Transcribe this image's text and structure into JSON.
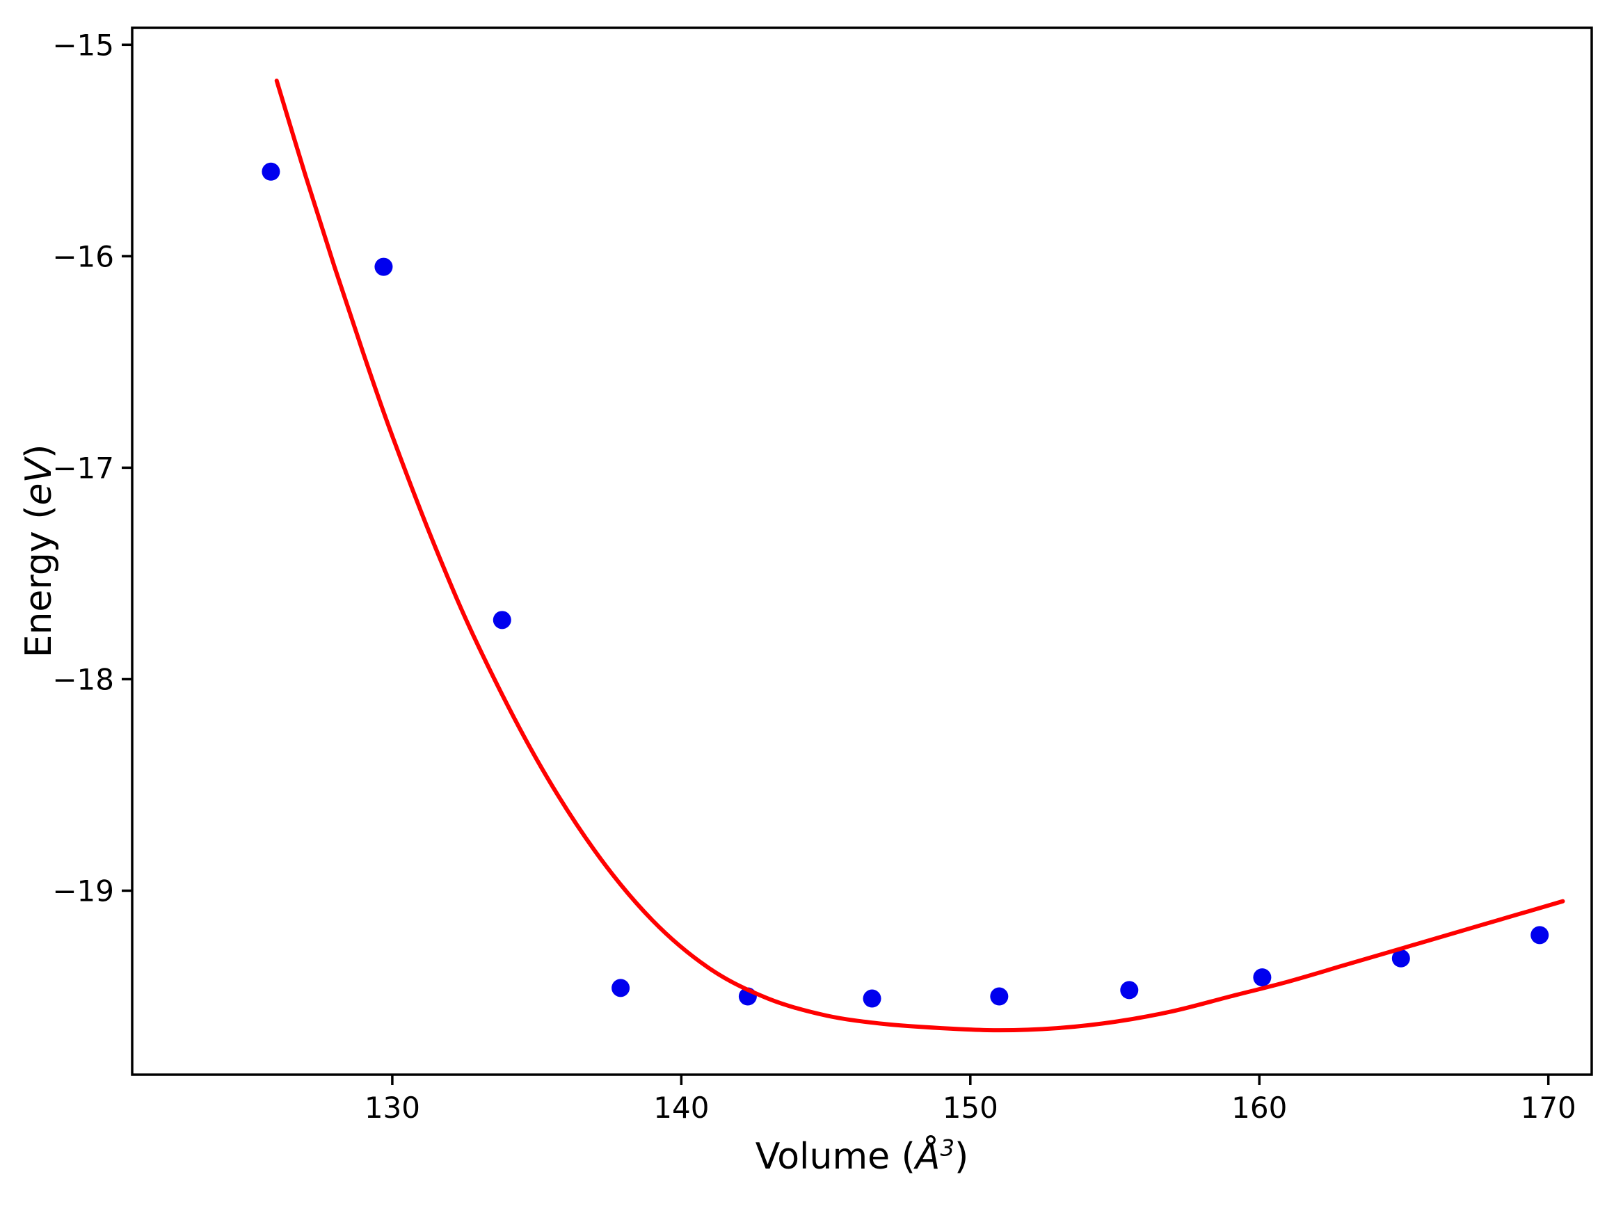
{
  "figure": {
    "background": "#ffffff"
  },
  "chart_data": {
    "type": "scatter",
    "title": "",
    "xlabel": {
      "prefix": "Volume (",
      "symbol": "Å",
      "exponent": "3",
      "suffix": ")"
    },
    "ylabel": {
      "prefix": "Energy (",
      "unit": "eV",
      "suffix": ")"
    },
    "xlim": [
      121.0,
      171.5
    ],
    "ylim": [
      -19.87,
      -14.92
    ],
    "xticks": [
      130,
      140,
      150,
      160,
      170
    ],
    "yticks": [
      -15,
      -16,
      -17,
      -18,
      -19
    ],
    "grid": false,
    "legend": null,
    "axis_color": "#000000",
    "series": [
      {
        "name": "calculated-energy-points",
        "type": "scatter",
        "marker": "circle",
        "color": "#0000ee",
        "marker_radius": 13,
        "x": [
          125.8,
          129.7,
          133.8,
          137.9,
          142.3,
          146.6,
          151.0,
          155.5,
          160.1,
          164.9,
          169.7
        ],
        "y": [
          -15.6,
          -16.05,
          -17.72,
          -19.46,
          -19.5,
          -19.51,
          -19.5,
          -19.47,
          -19.41,
          -19.32,
          -19.21
        ]
      },
      {
        "name": "eos-fit-curve",
        "type": "line",
        "color": "#ff0000",
        "line_width": 6,
        "x": [
          126.0,
          127.0,
          128.0,
          129.0,
          130.0,
          131.5,
          133.0,
          135.0,
          137.0,
          139.0,
          141.0,
          143.0,
          145.0,
          147.0,
          149.0,
          151.0,
          153.0,
          155.0,
          157.0,
          159.0,
          161.0,
          163.0,
          165.0,
          167.0,
          169.0,
          170.5
        ],
        "y": [
          -15.17,
          -15.62,
          -16.05,
          -16.46,
          -16.85,
          -17.38,
          -17.85,
          -18.38,
          -18.81,
          -19.14,
          -19.37,
          -19.51,
          -19.59,
          -19.63,
          -19.65,
          -19.66,
          -19.65,
          -19.62,
          -19.57,
          -19.5,
          -19.43,
          -19.35,
          -19.27,
          -19.19,
          -19.11,
          -19.05
        ]
      }
    ]
  }
}
